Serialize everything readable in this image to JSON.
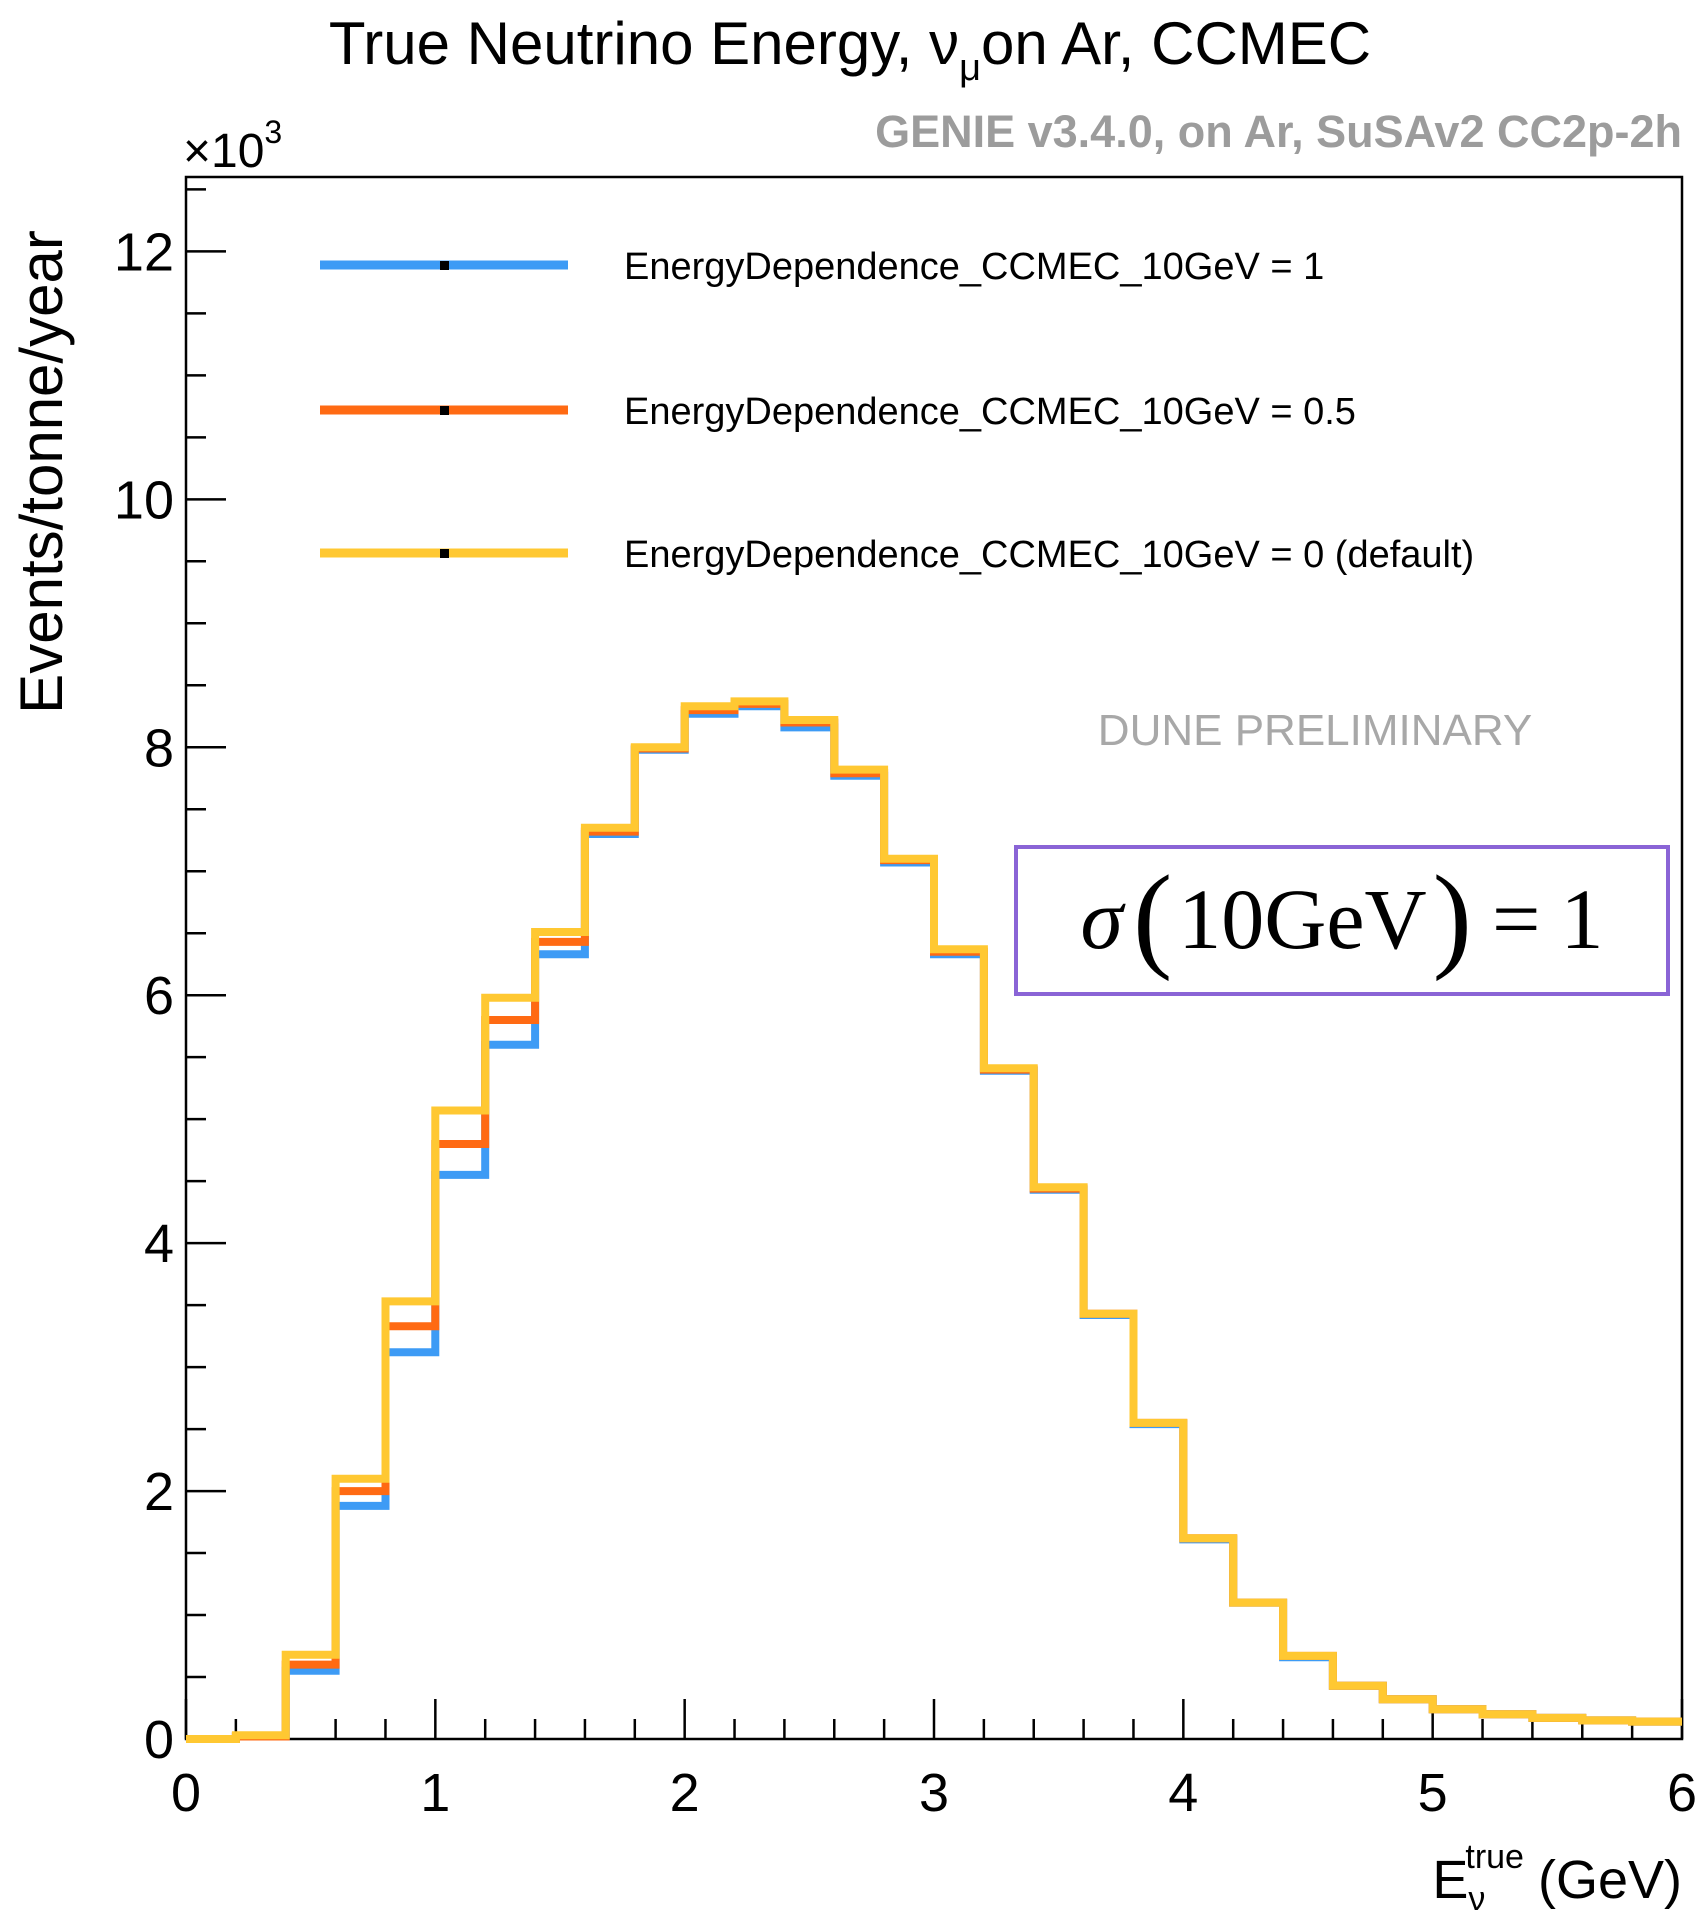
{
  "chart_data": {
    "type": "histogram-step",
    "title": "True Neutrino Energy, ",
    "title_nu": "ν",
    "title_mu": "μ",
    "title_rest": "on Ar, CCMEC",
    "generator_label": "GENIE v3.4.0, on Ar, SuSAv2 CC2p-2h",
    "watermark": "DUNE PRELIMINARY",
    "annotation": {
      "sigma": "σ",
      "lparen": "(",
      "energy": "10GeV",
      "rparen": ")",
      "equals": "=",
      "value": "1",
      "border_color": "#8a64d6"
    },
    "ylabel": "Events/tonne/year",
    "y_multiplier_base": "×10",
    "y_multiplier_exp": "3",
    "xlabel_main": "E",
    "xlabel_sub": "ν",
    "xlabel_sup": "true",
    "xlabel_unit": "(GeV)",
    "xlim": [
      0,
      6
    ],
    "ylim": [
      0,
      12.6
    ],
    "x_ticks": [
      0,
      1,
      2,
      3,
      4,
      5,
      6
    ],
    "x_tick_labels": [
      "0",
      "1",
      "2",
      "3",
      "4",
      "5",
      "6"
    ],
    "y_ticks": [
      0,
      2,
      4,
      6,
      8,
      10,
      12
    ],
    "y_tick_labels": [
      "0",
      "2",
      "4",
      "6",
      "8",
      "10",
      "12"
    ],
    "bin_edges": [
      0,
      0.2,
      0.4,
      0.6,
      0.8,
      1.0,
      1.2,
      1.4,
      1.6,
      1.8,
      2.0,
      2.2,
      2.4,
      2.6,
      2.8,
      3.0,
      3.2,
      3.4,
      3.6,
      3.8,
      4.0,
      4.2,
      4.4,
      4.6,
      4.8,
      5.0,
      5.2,
      5.4,
      5.6,
      5.8,
      6.0
    ],
    "series": [
      {
        "name": "EnergyDependence_CCMEC_10GeV = 1",
        "color": "#3d9bf5",
        "values": [
          0.0,
          0.02,
          0.55,
          1.88,
          3.12,
          4.55,
          5.6,
          6.33,
          7.3,
          7.98,
          8.27,
          8.33,
          8.16,
          7.77,
          7.07,
          6.33,
          5.39,
          4.43,
          3.42,
          2.54,
          1.61,
          1.1,
          0.66,
          0.43,
          0.32,
          0.24,
          0.2,
          0.17,
          0.15,
          0.14
        ]
      },
      {
        "name": "EnergyDependence_CCMEC_10GeV = 0.5",
        "color": "#ff6a13",
        "values": [
          0.0,
          0.02,
          0.6,
          2.0,
          3.33,
          4.8,
          5.8,
          6.43,
          7.32,
          7.99,
          8.3,
          8.35,
          8.2,
          7.79,
          7.09,
          6.35,
          5.4,
          4.44,
          3.43,
          2.55,
          1.62,
          1.1,
          0.67,
          0.43,
          0.32,
          0.24,
          0.2,
          0.17,
          0.15,
          0.14
        ]
      },
      {
        "name": "EnergyDependence_CCMEC_10GeV = 0 (default)",
        "color": "#ffc832",
        "values": [
          0.0,
          0.03,
          0.68,
          2.1,
          3.53,
          5.07,
          5.98,
          6.51,
          7.35,
          8.0,
          8.33,
          8.37,
          8.22,
          7.82,
          7.1,
          6.37,
          5.41,
          4.45,
          3.43,
          2.55,
          1.62,
          1.1,
          0.67,
          0.43,
          0.32,
          0.24,
          0.2,
          0.17,
          0.15,
          0.14
        ]
      }
    ]
  }
}
